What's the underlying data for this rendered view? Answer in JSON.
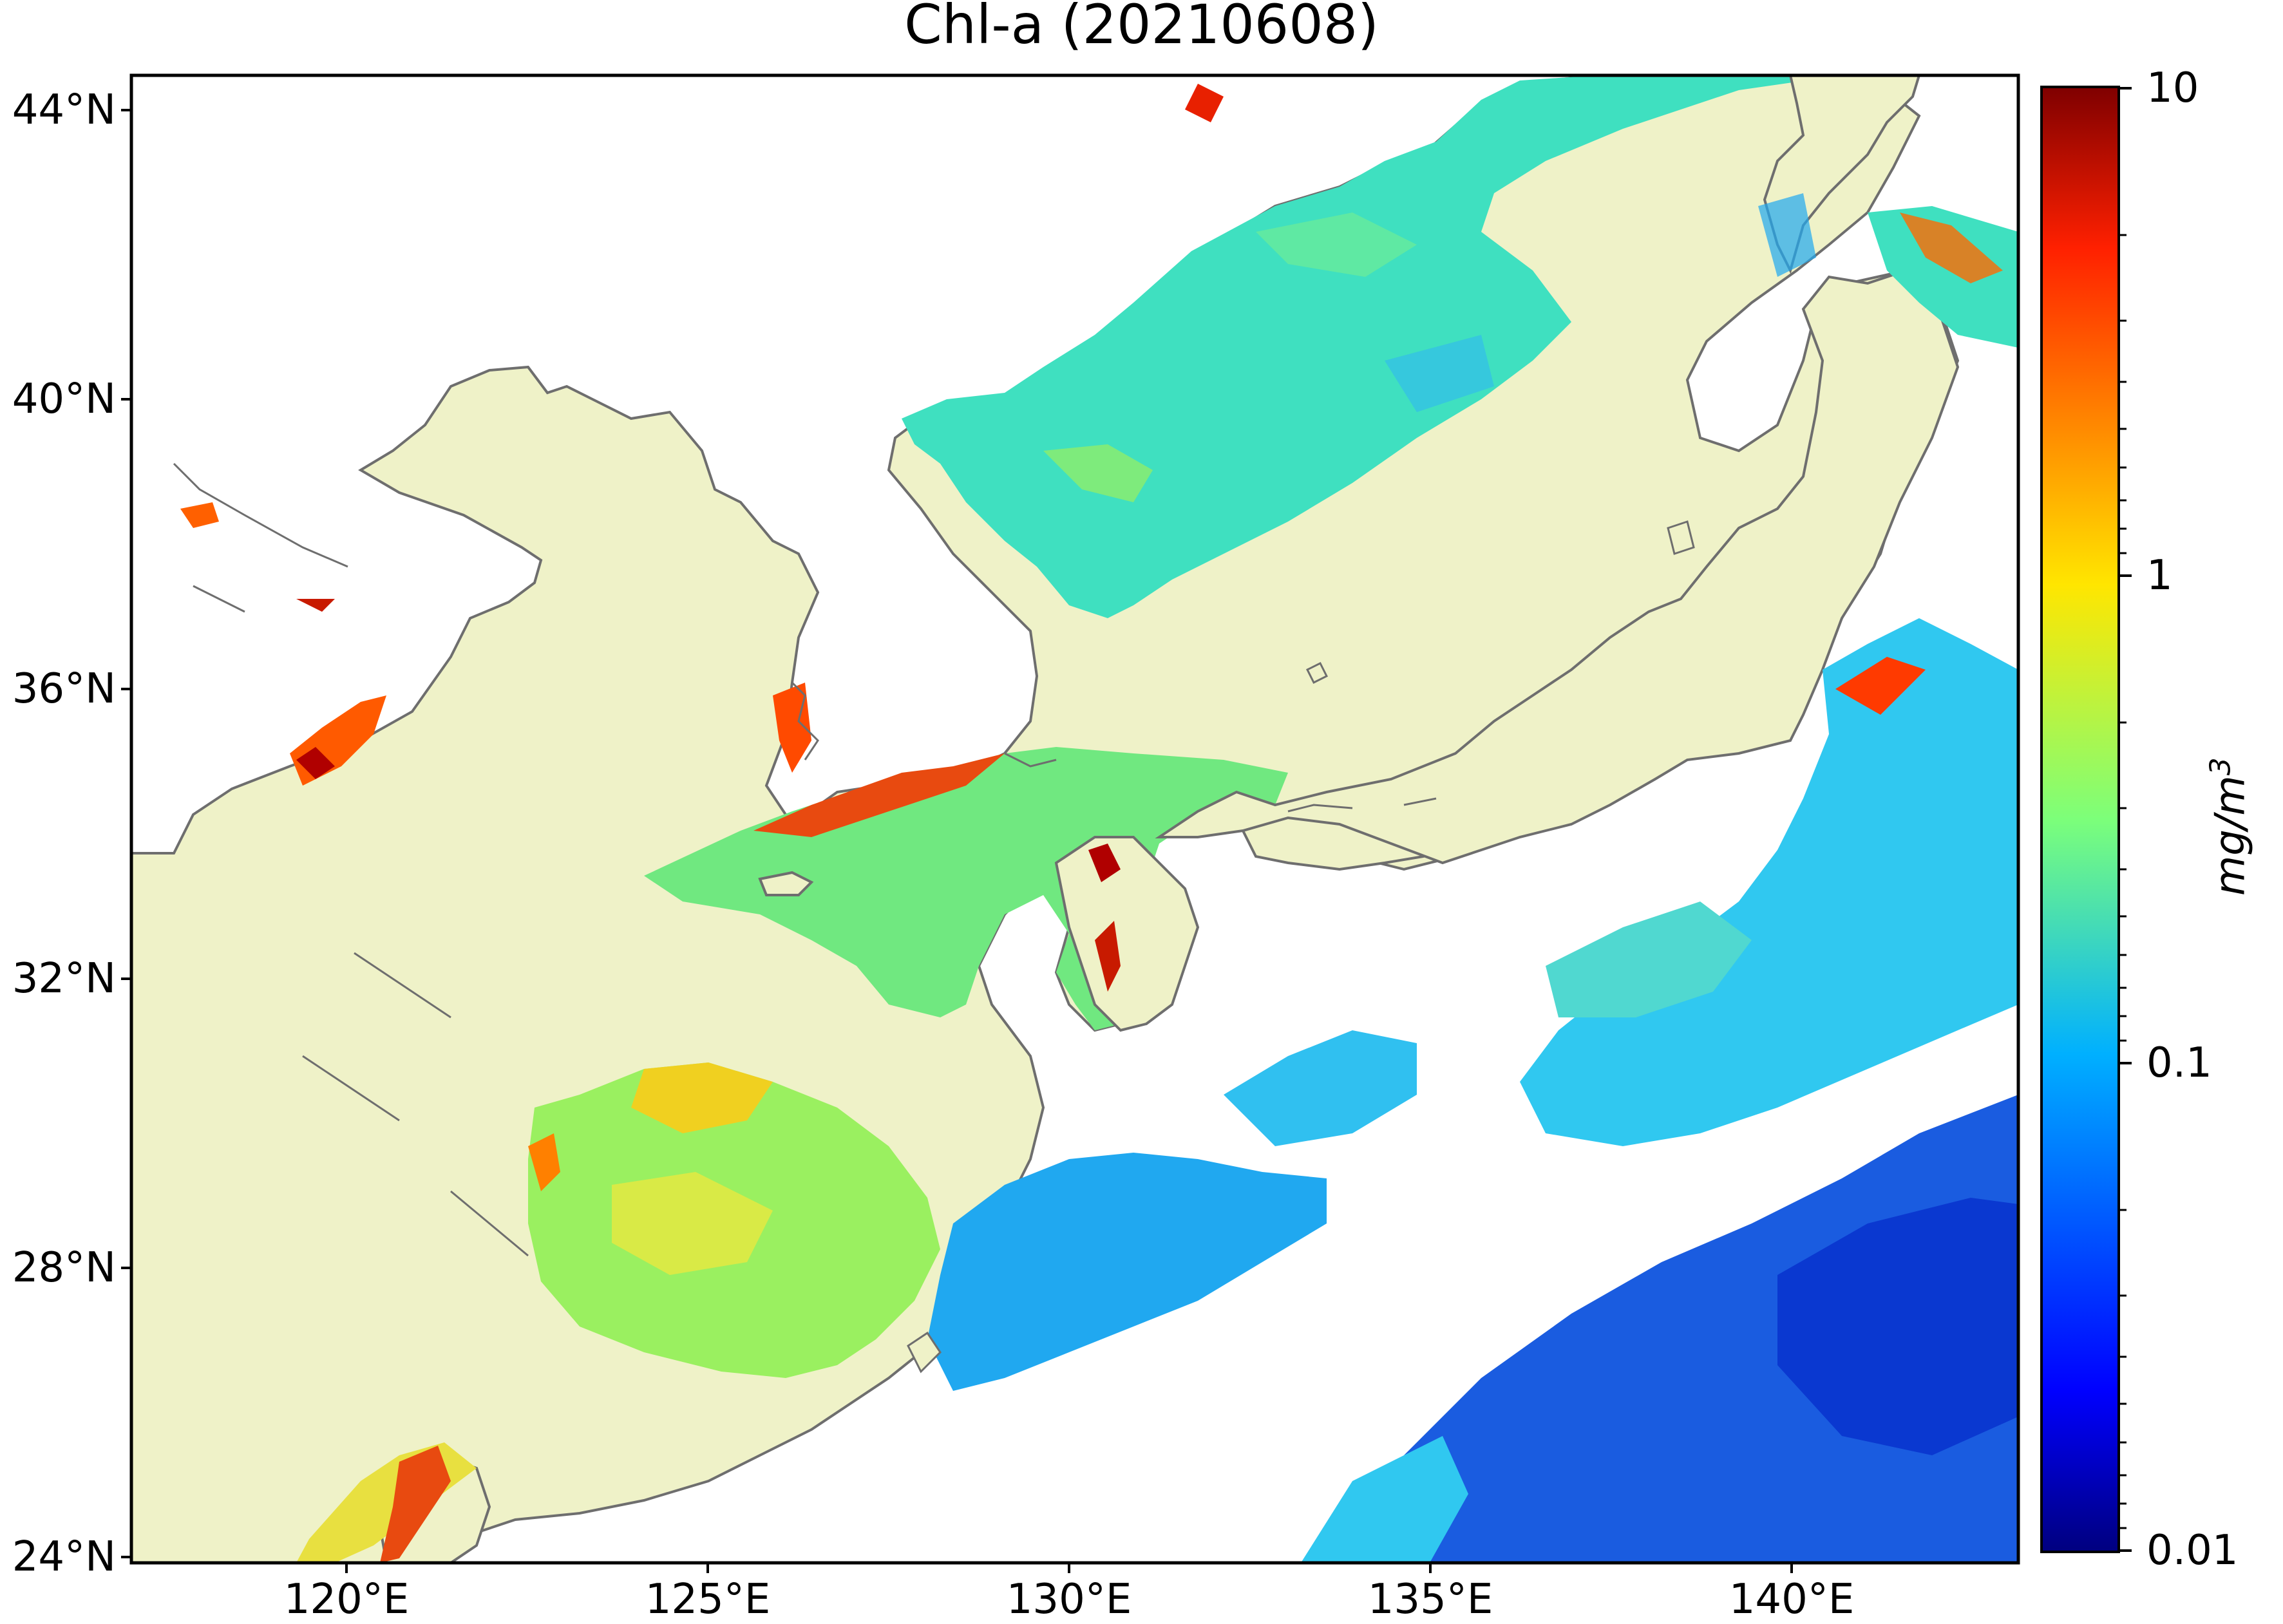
{
  "title": "Chl-a (20210608)",
  "map": {
    "lon_range": [
      117,
      143.3
    ],
    "lat_range": [
      24,
      44.5
    ],
    "lat_ticks": [
      "44°N",
      "40°N",
      "36°N",
      "32°N",
      "28°N",
      "24°N"
    ],
    "lon_ticks": [
      "120°E",
      "125°E",
      "130°E",
      "135°E",
      "140°E"
    ],
    "land_color": "#eff2c8",
    "no_data_color": "#ffffff",
    "coastline_color": "#6e6e6e"
  },
  "colorbar": {
    "scale": "log",
    "colormap": "jet",
    "range": [
      0.01,
      10
    ],
    "ticks": [
      "10",
      "1",
      "0.1",
      "0.01"
    ],
    "unit": "mg/m",
    "unit_exponent": "3"
  }
}
